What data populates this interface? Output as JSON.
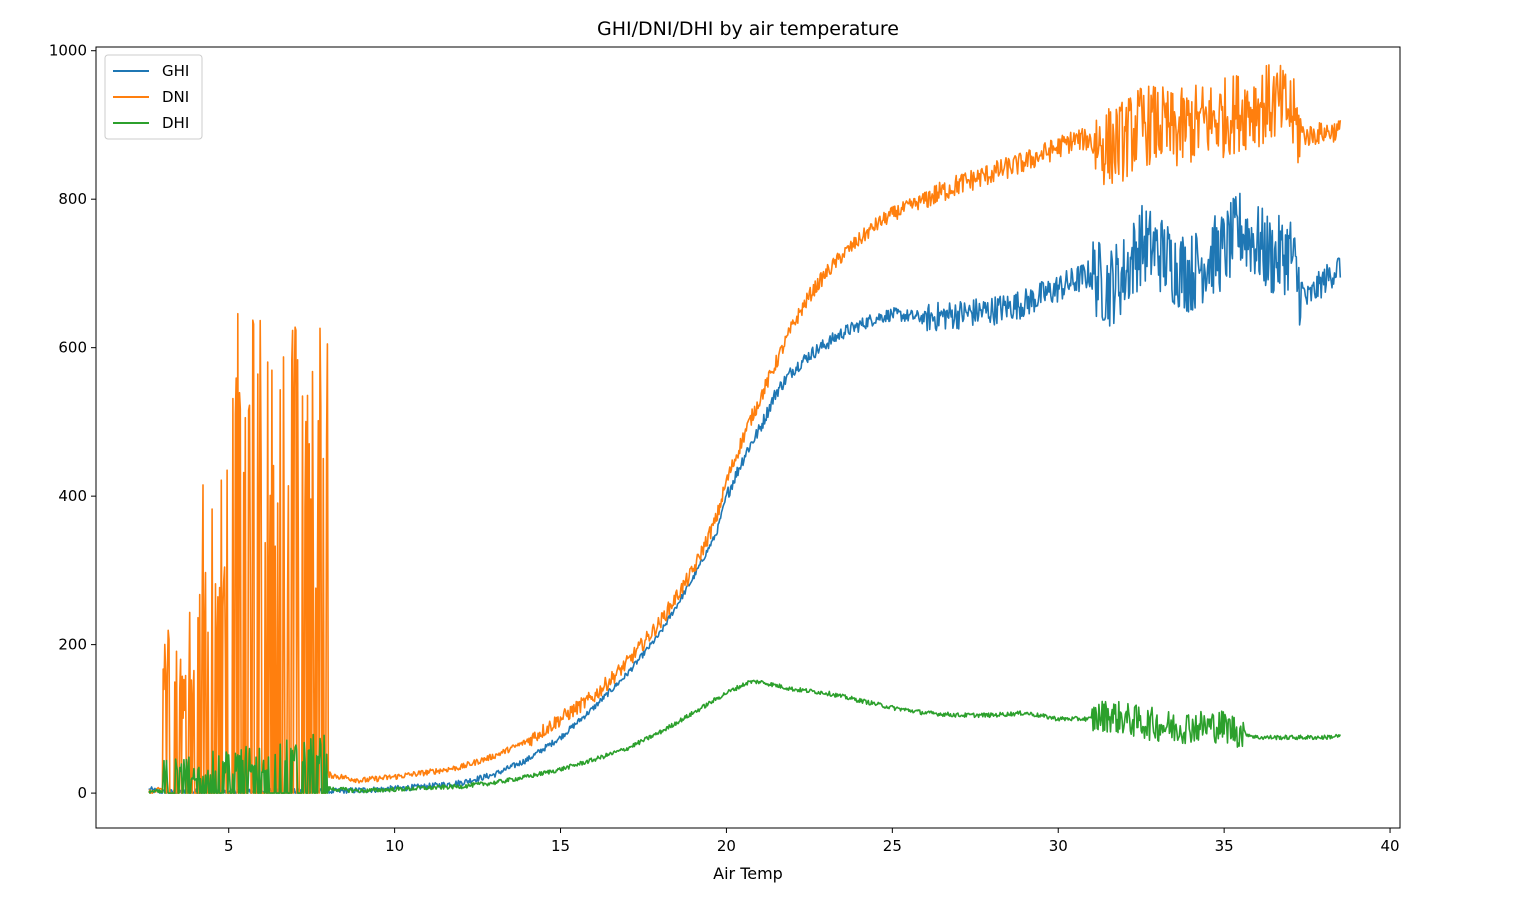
{
  "chart_data": {
    "type": "line",
    "title": "GHI/DNI/DHI by air temperature",
    "xlabel": "Air Temp",
    "ylabel": "",
    "xlim": [
      1.0,
      40.3
    ],
    "ylim": [
      -47,
      1005
    ],
    "xticks": [
      5,
      10,
      15,
      20,
      25,
      30,
      35,
      40
    ],
    "yticks": [
      0,
      200,
      400,
      600,
      800,
      1000
    ],
    "legend_position": "top-left",
    "grid": false,
    "series": [
      {
        "name": "GHI",
        "color": "#1f77b4",
        "points": [
          [
            2.6,
            5
          ],
          [
            3.0,
            1
          ],
          [
            4.0,
            2
          ],
          [
            5.0,
            2
          ],
          [
            6.0,
            2
          ],
          [
            7.0,
            2
          ],
          [
            8.0,
            2
          ],
          [
            9.0,
            4
          ],
          [
            10.0,
            6
          ],
          [
            11.0,
            9
          ],
          [
            12.0,
            14
          ],
          [
            13.0,
            25
          ],
          [
            14.0,
            45
          ],
          [
            15.0,
            75
          ],
          [
            16.0,
            115
          ],
          [
            17.0,
            160
          ],
          [
            18.0,
            215
          ],
          [
            19.0,
            290
          ],
          [
            19.7,
            350
          ],
          [
            20.0,
            400
          ],
          [
            20.6,
            460
          ],
          [
            21.0,
            490
          ],
          [
            21.5,
            540
          ],
          [
            22.0,
            570
          ],
          [
            22.5,
            590
          ],
          [
            23.0,
            605
          ],
          [
            23.5,
            620
          ],
          [
            24.0,
            630
          ],
          [
            24.5,
            640
          ],
          [
            25.0,
            645
          ],
          [
            26.0,
            640
          ],
          [
            27.0,
            645
          ],
          [
            28.0,
            650
          ],
          [
            29.0,
            660
          ],
          [
            30.0,
            680
          ],
          [
            30.5,
            690
          ],
          [
            31.0,
            700
          ],
          [
            31.5,
            680
          ],
          [
            32.0,
            700
          ],
          [
            32.5,
            740
          ],
          [
            33.0,
            730
          ],
          [
            33.5,
            710
          ],
          [
            34.0,
            700
          ],
          [
            34.5,
            720
          ],
          [
            35.0,
            730
          ],
          [
            35.5,
            760
          ],
          [
            36.0,
            740
          ],
          [
            36.5,
            720
          ],
          [
            37.0,
            730
          ],
          [
            37.2,
            690
          ],
          [
            37.5,
            665
          ],
          [
            38.0,
            690
          ],
          [
            38.5,
            710
          ]
        ]
      },
      {
        "name": "DNI",
        "color": "#ff7f0e",
        "points": [
          [
            2.6,
            0
          ],
          [
            3.0,
            5
          ],
          [
            4.0,
            15
          ],
          [
            5.0,
            20
          ],
          [
            6.0,
            25
          ],
          [
            7.0,
            30
          ],
          [
            8.0,
            25
          ],
          [
            9.0,
            17
          ],
          [
            10.0,
            22
          ],
          [
            11.0,
            28
          ],
          [
            12.0,
            35
          ],
          [
            13.0,
            50
          ],
          [
            14.0,
            70
          ],
          [
            15.0,
            100
          ],
          [
            16.0,
            130
          ],
          [
            17.0,
            175
          ],
          [
            18.0,
            230
          ],
          [
            19.0,
            300
          ],
          [
            19.7,
            370
          ],
          [
            20.0,
            420
          ],
          [
            20.6,
            490
          ],
          [
            21.0,
            530
          ],
          [
            21.5,
            580
          ],
          [
            22.0,
            630
          ],
          [
            22.5,
            670
          ],
          [
            23.0,
            700
          ],
          [
            23.5,
            725
          ],
          [
            24.0,
            745
          ],
          [
            24.5,
            765
          ],
          [
            25.0,
            780
          ],
          [
            26.0,
            800
          ],
          [
            27.0,
            820
          ],
          [
            28.0,
            835
          ],
          [
            29.0,
            850
          ],
          [
            30.0,
            870
          ],
          [
            30.5,
            880
          ],
          [
            31.0,
            880
          ],
          [
            31.5,
            870
          ],
          [
            32.0,
            880
          ],
          [
            32.5,
            900
          ],
          [
            33.0,
            900
          ],
          [
            33.5,
            890
          ],
          [
            34.0,
            900
          ],
          [
            34.5,
            905
          ],
          [
            35.0,
            910
          ],
          [
            35.5,
            920
          ],
          [
            36.0,
            925
          ],
          [
            36.5,
            930
          ],
          [
            37.0,
            920
          ],
          [
            37.2,
            895
          ],
          [
            37.5,
            885
          ],
          [
            38.0,
            890
          ],
          [
            38.5,
            893
          ]
        ]
      },
      {
        "name": "DHI",
        "color": "#2ca02c",
        "points": [
          [
            2.6,
            3
          ],
          [
            3.0,
            1
          ],
          [
            4.0,
            3
          ],
          [
            5.0,
            5
          ],
          [
            6.0,
            8
          ],
          [
            7.0,
            10
          ],
          [
            8.0,
            6
          ],
          [
            9.0,
            3
          ],
          [
            10.0,
            5
          ],
          [
            11.0,
            7
          ],
          [
            12.0,
            9
          ],
          [
            13.0,
            14
          ],
          [
            14.0,
            22
          ],
          [
            15.0,
            32
          ],
          [
            16.0,
            45
          ],
          [
            17.0,
            60
          ],
          [
            18.0,
            82
          ],
          [
            19.0,
            108
          ],
          [
            20.0,
            135
          ],
          [
            20.7,
            150
          ],
          [
            21.0,
            150
          ],
          [
            22.0,
            140
          ],
          [
            23.0,
            135
          ],
          [
            24.0,
            125
          ],
          [
            25.0,
            115
          ],
          [
            26.0,
            108
          ],
          [
            27.0,
            105
          ],
          [
            28.0,
            105
          ],
          [
            29.0,
            108
          ],
          [
            30.0,
            100
          ],
          [
            31.0,
            100
          ],
          [
            31.5,
            105
          ],
          [
            32.0,
            100
          ],
          [
            32.5,
            95
          ],
          [
            33.0,
            92
          ],
          [
            33.5,
            88
          ],
          [
            34.0,
            90
          ],
          [
            34.5,
            90
          ],
          [
            35.0,
            90
          ],
          [
            35.5,
            82
          ],
          [
            36.0,
            75
          ],
          [
            37.0,
            75
          ],
          [
            38.0,
            75
          ],
          [
            38.5,
            77
          ]
        ]
      }
    ],
    "dense_band_region": [
      3.0,
      8.0
    ]
  }
}
